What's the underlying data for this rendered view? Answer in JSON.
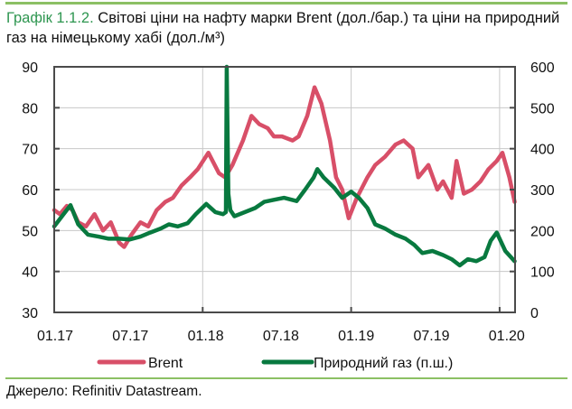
{
  "title": {
    "number": "Графік 1.1.2.",
    "text": "Світові ціни на нафту марки Brent (дол./бар.) та ціни на природний газ на німецькому хабі (дол./м³)"
  },
  "source": "Джерело: Refinitiv Datastream.",
  "colors": {
    "brent": "#d84f68",
    "gas": "#08793f",
    "accent": "#8cc064",
    "title_number": "#2e9650"
  },
  "chart_data": {
    "type": "line",
    "x_range": [
      "2017-01-01",
      "2020-02-08"
    ],
    "x_tick_labels": [
      "01.17",
      "07.17",
      "01.18",
      "07.18",
      "01.19",
      "07.19",
      "01.20"
    ],
    "y_left": {
      "range": [
        30,
        90
      ],
      "ticks": [
        30,
        40,
        50,
        60,
        70,
        80,
        90
      ]
    },
    "y_right": {
      "range": [
        0,
        600
      ],
      "ticks": [
        0,
        100,
        200,
        300,
        400,
        500,
        600
      ]
    },
    "grid": true,
    "legend_position": "bottom",
    "series": [
      {
        "name": "Brent",
        "axis": "left",
        "x": [
          "2017-01-01",
          "2017-01-15",
          "2017-02-01",
          "2017-02-15",
          "2017-03-01",
          "2017-03-20",
          "2017-04-10",
          "2017-05-01",
          "2017-05-20",
          "2017-06-10",
          "2017-06-22",
          "2017-07-10",
          "2017-08-01",
          "2017-08-20",
          "2017-09-10",
          "2017-10-01",
          "2017-10-20",
          "2017-11-10",
          "2017-12-01",
          "2017-12-20",
          "2018-01-15",
          "2018-02-10",
          "2018-02-25",
          "2018-03-15",
          "2018-04-10",
          "2018-05-01",
          "2018-05-20",
          "2018-06-10",
          "2018-06-25",
          "2018-07-15",
          "2018-08-10",
          "2018-08-25",
          "2018-09-15",
          "2018-10-03",
          "2018-10-20",
          "2018-11-10",
          "2018-11-25",
          "2018-12-10",
          "2018-12-26",
          "2019-01-15",
          "2019-02-10",
          "2019-03-01",
          "2019-03-25",
          "2019-04-20",
          "2019-05-10",
          "2019-06-01",
          "2019-06-15",
          "2019-07-10",
          "2019-08-01",
          "2019-08-15",
          "2019-09-05",
          "2019-09-17",
          "2019-10-05",
          "2019-10-25",
          "2019-11-15",
          "2019-12-05",
          "2019-12-25",
          "2020-01-08",
          "2020-01-25",
          "2020-02-07"
        ],
        "y": [
          55,
          54,
          56,
          55,
          52,
          51,
          54,
          50,
          52,
          47,
          46,
          49,
          52,
          51,
          55,
          57,
          58,
          61,
          63,
          65,
          69,
          64,
          63,
          66,
          72,
          78,
          76,
          75,
          73,
          73,
          72,
          73,
          78,
          85,
          81,
          72,
          63,
          60,
          53,
          58,
          63,
          66,
          68,
          71,
          72,
          70,
          63,
          66,
          60,
          62,
          58,
          67,
          59,
          60,
          62,
          65,
          67,
          69,
          63,
          57
        ]
      },
      {
        "name": "Природний газ (п.ш.)",
        "axis": "right",
        "x": [
          "2017-01-01",
          "2017-01-20",
          "2017-02-10",
          "2017-03-01",
          "2017-03-25",
          "2017-04-20",
          "2017-05-15",
          "2017-06-10",
          "2017-07-05",
          "2017-08-01",
          "2017-08-25",
          "2017-09-20",
          "2017-10-10",
          "2017-11-01",
          "2017-11-25",
          "2017-12-15",
          "2018-01-10",
          "2018-02-01",
          "2018-02-20",
          "2018-02-27",
          "2018-03-01",
          "2018-03-05",
          "2018-03-10",
          "2018-03-20",
          "2018-04-15",
          "2018-05-10",
          "2018-06-01",
          "2018-06-25",
          "2018-07-20",
          "2018-08-20",
          "2018-09-10",
          "2018-10-01",
          "2018-10-10",
          "2018-10-25",
          "2018-11-20",
          "2018-12-10",
          "2019-01-01",
          "2019-01-20",
          "2019-02-10",
          "2019-03-01",
          "2019-03-25",
          "2019-04-20",
          "2019-05-15",
          "2019-06-05",
          "2019-06-25",
          "2019-07-20",
          "2019-08-15",
          "2019-09-05",
          "2019-09-25",
          "2019-10-15",
          "2019-11-05",
          "2019-11-25",
          "2019-12-10",
          "2019-12-25",
          "2020-01-15",
          "2020-02-07"
        ],
        "y": [
          210,
          235,
          262,
          215,
          190,
          185,
          180,
          180,
          178,
          185,
          195,
          205,
          215,
          210,
          218,
          240,
          265,
          245,
          240,
          245,
          600,
          290,
          250,
          235,
          245,
          255,
          270,
          275,
          280,
          272,
          300,
          330,
          350,
          330,
          305,
          280,
          295,
          280,
          255,
          215,
          205,
          190,
          180,
          165,
          145,
          150,
          140,
          130,
          115,
          130,
          125,
          135,
          175,
          195,
          150,
          125
        ]
      }
    ]
  }
}
